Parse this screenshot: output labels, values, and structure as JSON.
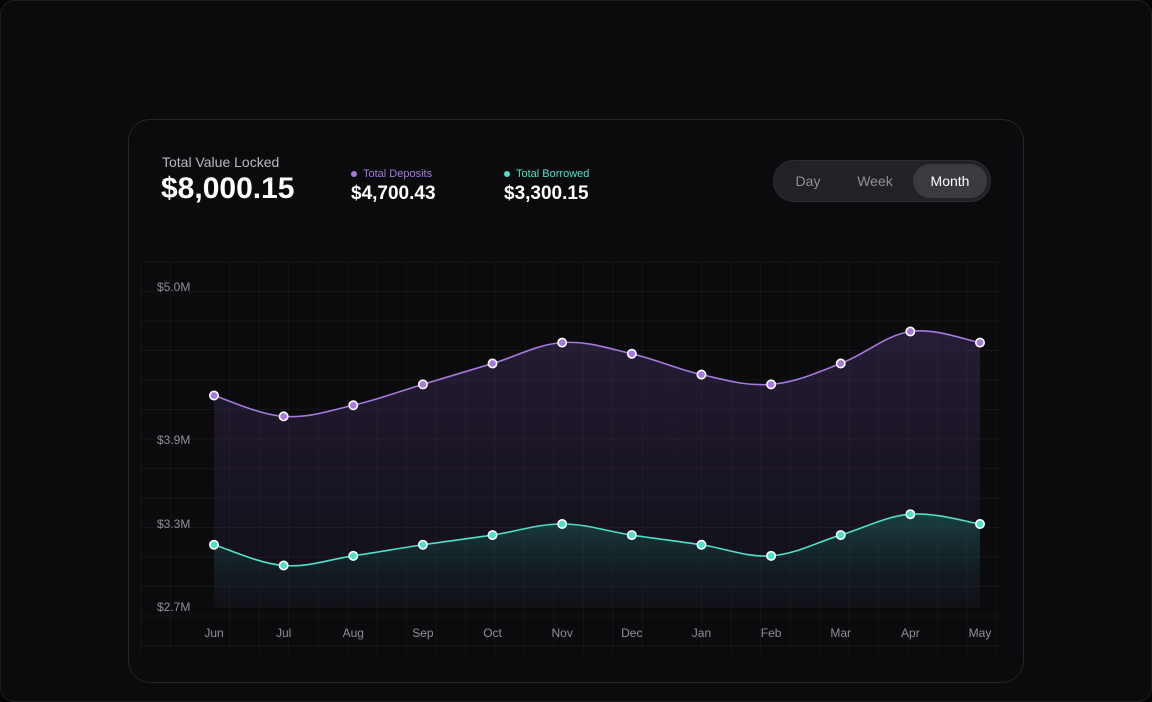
{
  "summary": {
    "tvl_label": "Total Value Locked",
    "tvl_value": "$8,000.15",
    "deposits_label": "Total Deposits",
    "deposits_value": "$4,700.43",
    "borrowed_label": "Total Borrowed",
    "borrowed_value": "$3,300.15"
  },
  "toggle": {
    "options": [
      "Day",
      "Week",
      "Month"
    ],
    "selected": "Month"
  },
  "colors": {
    "deposits": "#a47ae0",
    "borrowed": "#4fe0c8"
  },
  "chart_data": {
    "type": "area",
    "x": [
      "Jun",
      "Jul",
      "Aug",
      "Sep",
      "Oct",
      "Nov",
      "Dec",
      "Jan",
      "Feb",
      "Mar",
      "Apr",
      "May"
    ],
    "series": [
      {
        "name": "Total Deposits",
        "color": "#a47ae0",
        "values": [
          4.22,
          4.07,
          4.15,
          4.3,
          4.45,
          4.6,
          4.52,
          4.37,
          4.3,
          4.45,
          4.68,
          4.6
        ]
      },
      {
        "name": "Total Borrowed",
        "color": "#4fe0c8",
        "values": [
          3.15,
          3.0,
          3.07,
          3.15,
          3.22,
          3.3,
          3.22,
          3.15,
          3.07,
          3.22,
          3.37,
          3.3
        ]
      }
    ],
    "y_ticks": [
      {
        "value": 5.0,
        "label": "$5.0M"
      },
      {
        "value": 3.9,
        "label": "$3.9M"
      },
      {
        "value": 3.3,
        "label": "$3.3M"
      },
      {
        "value": 2.7,
        "label": "$2.7M"
      }
    ],
    "grid": true
  }
}
